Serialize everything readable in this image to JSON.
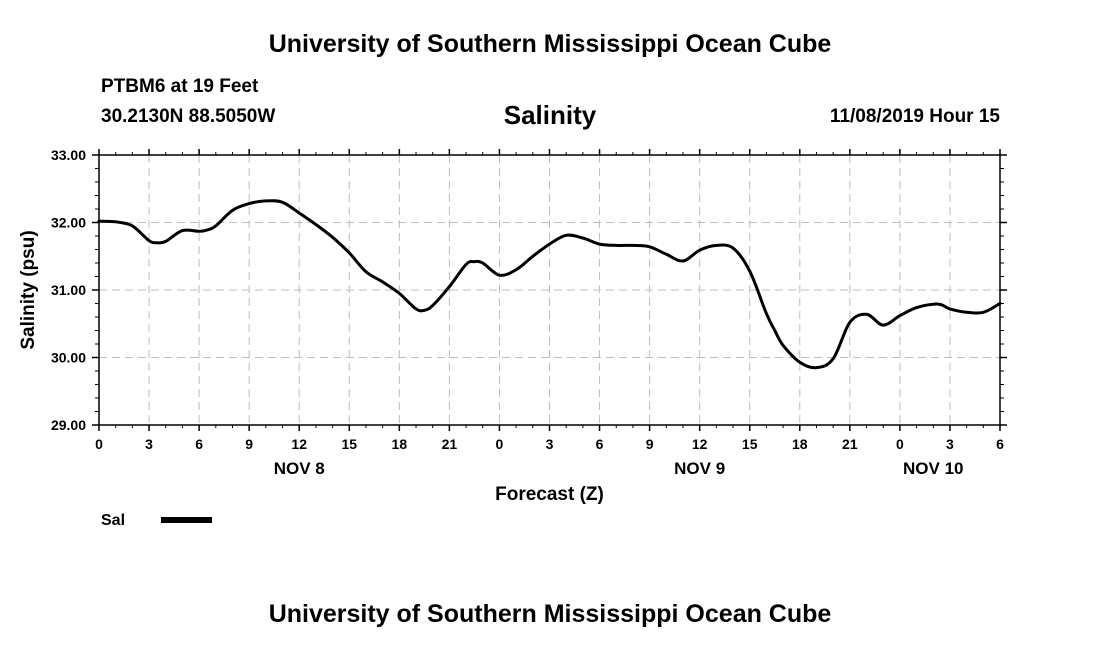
{
  "header": {
    "title": "University of Southern Mississippi Ocean Cube",
    "station": "PTBM6 at 19 Feet",
    "coordinates": "30.2130N 88.5050W",
    "variable": "Salinity",
    "datetime": "11/08/2019 Hour 15"
  },
  "footer": {
    "title": "University of Southern Mississippi Ocean Cube"
  },
  "chart_data": {
    "type": "line",
    "title": "Salinity",
    "xlabel": "Forecast (Z)",
    "ylabel": "Salinity (psu)",
    "xlim": [
      0,
      54
    ],
    "ylim": [
      29.0,
      33.0
    ],
    "yticks": [
      "29.00",
      "30.00",
      "31.00",
      "32.00",
      "33.00"
    ],
    "xticks": [
      "0",
      "3",
      "6",
      "9",
      "12",
      "15",
      "18",
      "21",
      "0",
      "3",
      "6",
      "9",
      "12",
      "15",
      "18",
      "21",
      "0",
      "3",
      "6"
    ],
    "day_labels": [
      {
        "label": "NOV 8",
        "hour": 12
      },
      {
        "label": "NOV 9",
        "hour": 36
      },
      {
        "label": "NOV 10",
        "hour": 50
      }
    ],
    "grid": true,
    "legend": {
      "position": "bottom-left",
      "entries": [
        {
          "name": "Sal",
          "color": "#000000"
        }
      ]
    },
    "series": [
      {
        "name": "Sal",
        "color": "#000000",
        "x": [
          0,
          1,
          2,
          3,
          3.5,
          4,
          5,
          6,
          6.5,
          7,
          8,
          9,
          10,
          11,
          12,
          13,
          14,
          15,
          16,
          17,
          18,
          19,
          19.5,
          20,
          21,
          22,
          22.5,
          23,
          24,
          25,
          26,
          27,
          28,
          29,
          30,
          31,
          32,
          33,
          34,
          35,
          36,
          37,
          38,
          39,
          40,
          40.5,
          41,
          42,
          43,
          44,
          45,
          46,
          47,
          48,
          49,
          50,
          50.5,
          51,
          52,
          53,
          54
        ],
        "y": [
          32.02,
          32.01,
          31.95,
          31.73,
          31.7,
          31.72,
          31.88,
          31.87,
          31.89,
          31.95,
          32.18,
          32.28,
          32.32,
          32.3,
          32.14,
          31.97,
          31.78,
          31.55,
          31.27,
          31.12,
          30.95,
          30.72,
          30.7,
          30.77,
          31.05,
          31.38,
          31.42,
          31.4,
          31.22,
          31.3,
          31.5,
          31.68,
          31.81,
          31.77,
          31.68,
          31.66,
          31.66,
          31.64,
          31.53,
          31.43,
          31.59,
          31.66,
          31.62,
          31.28,
          30.65,
          30.4,
          30.18,
          29.93,
          29.85,
          29.98,
          30.52,
          30.64,
          30.48,
          30.62,
          30.74,
          30.79,
          30.78,
          30.72,
          30.67,
          30.67,
          30.8
        ]
      }
    ]
  }
}
